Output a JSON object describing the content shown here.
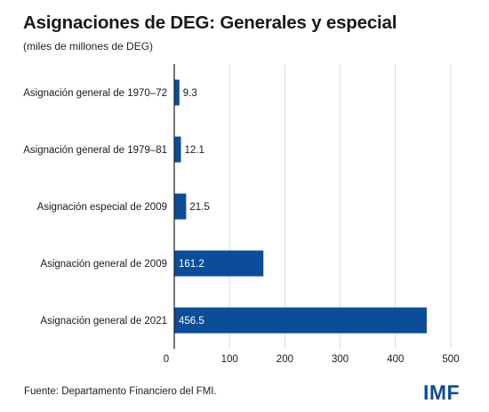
{
  "header": {
    "title": "Asignaciones de DEG: Generales y especial",
    "subtitle": "(miles de millones de DEG)"
  },
  "footer": {
    "source": "Fuente: Departamento Financiero del FMI.",
    "logo_text": "IMF"
  },
  "colors": {
    "bar": "#0b4d98",
    "grid": "#d9d9d9"
  },
  "chart_data": {
    "type": "bar",
    "orientation": "horizontal",
    "title": "Asignaciones de DEG: Generales y especial",
    "subtitle": "(miles de millones de DEG)",
    "categories": [
      "Asignación general de 1970–72",
      "Asignación general de 1979–81",
      "Asignación especial de 2009",
      "Asignación general de 2009",
      "Asignación general de 2021"
    ],
    "values": [
      9.3,
      12.1,
      21.5,
      161.2,
      456.5
    ],
    "data_labels": [
      "9.3",
      "12.1",
      "21.5",
      "161.2",
      "456.5"
    ],
    "xlim": [
      0,
      500
    ],
    "xticks": [
      0,
      100,
      200,
      300,
      400,
      500
    ],
    "grid": true,
    "legend": "none"
  }
}
